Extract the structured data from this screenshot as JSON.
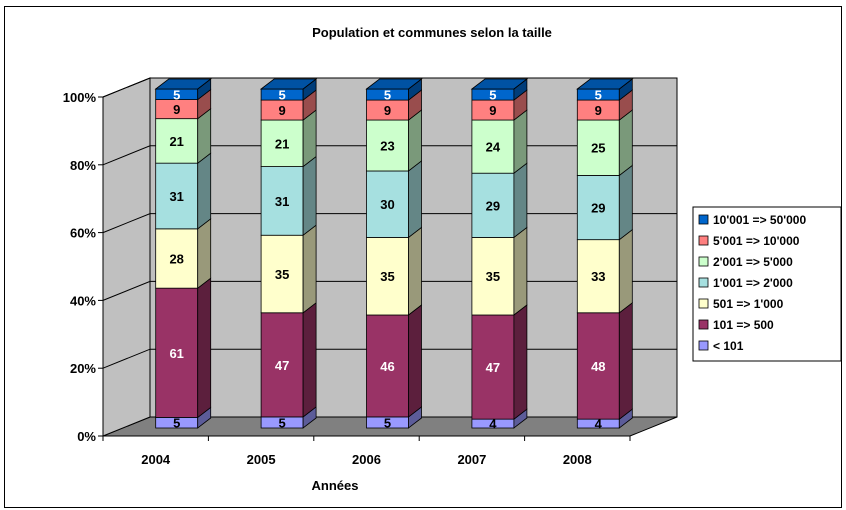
{
  "chart_data": {
    "type": "bar",
    "stacked": "percent",
    "three_d": true,
    "title": "Population et communes selon la taille",
    "xlabel": "Années",
    "ylabel": "",
    "categories": [
      "2004",
      "2005",
      "2006",
      "2007",
      "2008"
    ],
    "y_ticks": [
      "0%",
      "20%",
      "40%",
      "60%",
      "80%",
      "100%"
    ],
    "ylim": [
      0,
      100
    ],
    "grid": true,
    "legend_position": "right",
    "series": [
      {
        "name": "< 101",
        "color": "#9999FF",
        "values": [
          5,
          5,
          5,
          4,
          4
        ]
      },
      {
        "name": "101 => 500",
        "color": "#993366",
        "values": [
          61,
          47,
          46,
          47,
          48
        ]
      },
      {
        "name": "501 => 1'000",
        "color": "#FFFFCC",
        "values": [
          28,
          35,
          35,
          35,
          33
        ]
      },
      {
        "name": "1'001 => 2'000",
        "color": "#A6E0E0",
        "values": [
          31,
          31,
          30,
          29,
          29
        ]
      },
      {
        "name": "2'001 => 5'000",
        "color": "#CCFFCC",
        "values": [
          21,
          21,
          23,
          24,
          25
        ]
      },
      {
        "name": "5'001 => 10'000",
        "color": "#FF8080",
        "values": [
          9,
          9,
          9,
          9,
          9
        ]
      },
      {
        "name": "10'001 => 50'000",
        "color": "#0066CC",
        "values": [
          5,
          5,
          5,
          5,
          5
        ]
      }
    ],
    "colors": {
      "wall": "#C0C0C0",
      "floor": "#808080",
      "grid": "#000000"
    }
  }
}
